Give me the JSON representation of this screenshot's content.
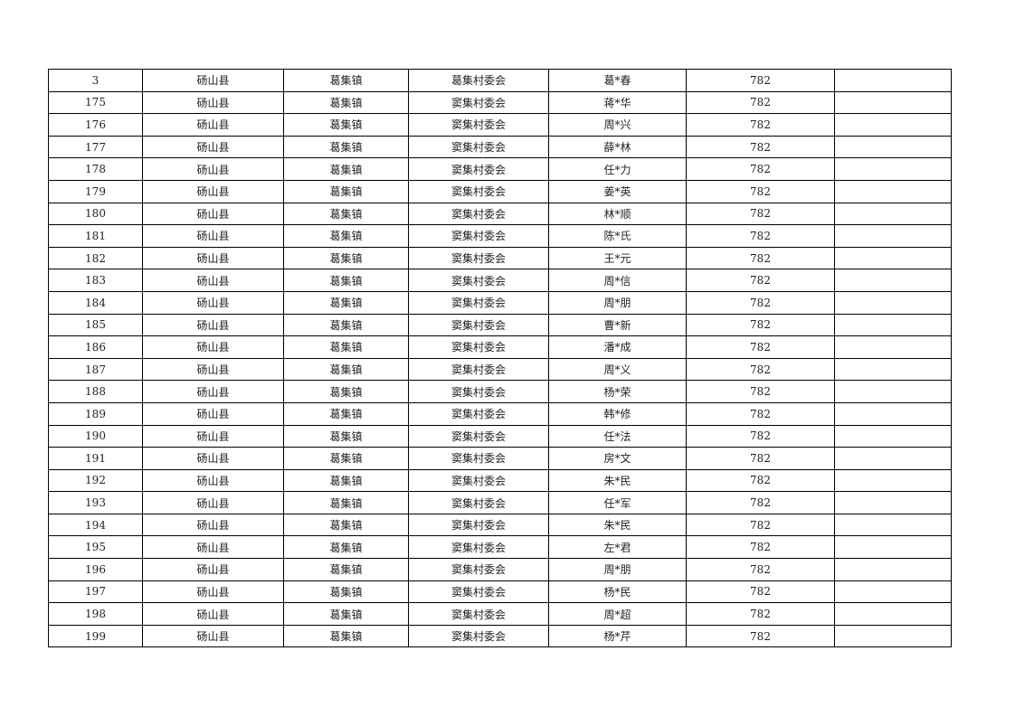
{
  "table": {
    "rows": [
      [
        "3",
        "砀山县",
        "葛集镇",
        "葛集村委会",
        "葛*春",
        "782",
        ""
      ],
      [
        "175",
        "砀山县",
        "葛集镇",
        "窦集村委会",
        "蒋*华",
        "782",
        ""
      ],
      [
        "176",
        "砀山县",
        "葛集镇",
        "窦集村委会",
        "周*兴",
        "782",
        ""
      ],
      [
        "177",
        "砀山县",
        "葛集镇",
        "窦集村委会",
        "薛*林",
        "782",
        ""
      ],
      [
        "178",
        "砀山县",
        "葛集镇",
        "窦集村委会",
        "任*力",
        "782",
        ""
      ],
      [
        "179",
        "砀山县",
        "葛集镇",
        "窦集村委会",
        "姜*英",
        "782",
        ""
      ],
      [
        "180",
        "砀山县",
        "葛集镇",
        "窦集村委会",
        "林*顺",
        "782",
        ""
      ],
      [
        "181",
        "砀山县",
        "葛集镇",
        "窦集村委会",
        "陈*氏",
        "782",
        ""
      ],
      [
        "182",
        "砀山县",
        "葛集镇",
        "窦集村委会",
        "王*元",
        "782",
        ""
      ],
      [
        "183",
        "砀山县",
        "葛集镇",
        "窦集村委会",
        "周*信",
        "782",
        ""
      ],
      [
        "184",
        "砀山县",
        "葛集镇",
        "窦集村委会",
        "周*朋",
        "782",
        ""
      ],
      [
        "185",
        "砀山县",
        "葛集镇",
        "窦集村委会",
        "曹*新",
        "782",
        ""
      ],
      [
        "186",
        "砀山县",
        "葛集镇",
        "窦集村委会",
        "潘*成",
        "782",
        ""
      ],
      [
        "187",
        "砀山县",
        "葛集镇",
        "窦集村委会",
        "周*义",
        "782",
        ""
      ],
      [
        "188",
        "砀山县",
        "葛集镇",
        "窦集村委会",
        "杨*荣",
        "782",
        ""
      ],
      [
        "189",
        "砀山县",
        "葛集镇",
        "窦集村委会",
        "韩*修",
        "782",
        ""
      ],
      [
        "190",
        "砀山县",
        "葛集镇",
        "窦集村委会",
        "任*法",
        "782",
        ""
      ],
      [
        "191",
        "砀山县",
        "葛集镇",
        "窦集村委会",
        "房*文",
        "782",
        ""
      ],
      [
        "192",
        "砀山县",
        "葛集镇",
        "窦集村委会",
        "朱*民",
        "782",
        ""
      ],
      [
        "193",
        "砀山县",
        "葛集镇",
        "窦集村委会",
        "任*军",
        "782",
        ""
      ],
      [
        "194",
        "砀山县",
        "葛集镇",
        "窦集村委会",
        "朱*民",
        "782",
        ""
      ],
      [
        "195",
        "砀山县",
        "葛集镇",
        "窦集村委会",
        "左*君",
        "782",
        ""
      ],
      [
        "196",
        "砀山县",
        "葛集镇",
        "窦集村委会",
        "周*朋",
        "782",
        ""
      ],
      [
        "197",
        "砀山县",
        "葛集镇",
        "窦集村委会",
        "杨*民",
        "782",
        ""
      ],
      [
        "198",
        "砀山县",
        "葛集镇",
        "窦集村委会",
        "周*超",
        "782",
        ""
      ],
      [
        "199",
        "砀山县",
        "葛集镇",
        "窦集村委会",
        "杨*芹",
        "782",
        ""
      ]
    ]
  }
}
